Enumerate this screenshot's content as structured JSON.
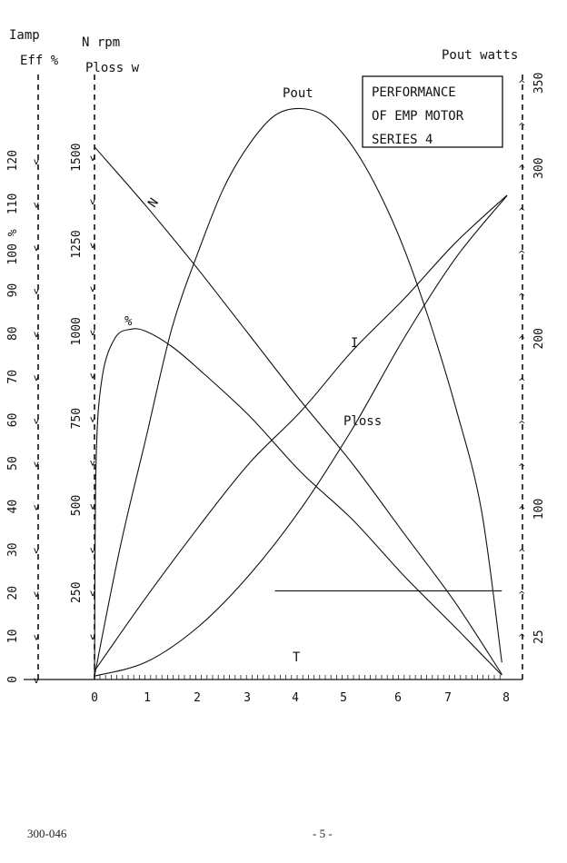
{
  "document": {
    "number": "300-046",
    "page": "- 5 -"
  },
  "chart_data": {
    "type": "line",
    "title": [
      "PERFORMANCE",
      "OF EMP MOTOR",
      "SERIES 4"
    ],
    "xlabel": "T",
    "xlim": [
      0,
      8
    ],
    "x_ticks": [
      "0",
      "1",
      "2",
      "3",
      "4",
      "5",
      "6",
      "7",
      "8"
    ],
    "axes": {
      "i_eff": {
        "labels": [
          "Iamp",
          "Eff %"
        ],
        "ticks": [
          "0",
          "10",
          "20",
          "30",
          "40",
          "50",
          "60",
          "70",
          "80",
          "90",
          "100 %",
          "110",
          "120"
        ],
        "range": [
          0,
          125
        ]
      },
      "rpm_ploss": {
        "labels": [
          "N rpm",
          "Ploss w"
        ],
        "ticks": [
          "250",
          "500",
          "750",
          "1000",
          "1250",
          "1500"
        ],
        "range": [
          0,
          1600
        ]
      },
      "pout": {
        "labels": [
          "Pout watts"
        ],
        "ticks": [
          "25",
          "100",
          "200",
          "300",
          "350"
        ],
        "range": [
          0,
          350
        ]
      }
    },
    "series": [
      {
        "name": "N",
        "axis": "rpm_ploss",
        "x": [
          0,
          1,
          2,
          3,
          4,
          5,
          6,
          7,
          7.9
        ],
        "y": [
          1530,
          1360,
          1180,
          990,
          800,
          620,
          420,
          220,
          15
        ]
      },
      {
        "name": "%",
        "axis": "i_eff",
        "x": [
          0,
          0.03,
          0.15,
          0.4,
          0.7,
          1.0,
          1.5,
          2,
          3,
          4,
          5,
          6,
          7,
          7.9
        ],
        "y": [
          0,
          50,
          70,
          79,
          81,
          80.5,
          77,
          72,
          61,
          48,
          37,
          24,
          12,
          1
        ]
      },
      {
        "name": "Pout",
        "axis": "pout",
        "x": [
          0,
          0.5,
          1,
          1.5,
          2,
          2.5,
          3,
          3.5,
          4,
          4.5,
          5,
          5.5,
          6,
          6.5,
          7,
          7.5,
          7.9
        ],
        "y": [
          2,
          78,
          142,
          206,
          250,
          288,
          314,
          331,
          335,
          330,
          313,
          287,
          253,
          210,
          160,
          100,
          10
        ]
      },
      {
        "name": "I",
        "axis": "i_eff",
        "x": [
          0,
          1,
          2,
          3,
          4,
          5,
          6,
          7,
          8
        ],
        "y": [
          2,
          19,
          35,
          50,
          62,
          76,
          88,
          101,
          112
        ]
      },
      {
        "name": "Ploss",
        "axis": "rpm_ploss",
        "x": [
          0,
          1,
          2,
          3,
          4,
          5,
          6,
          7,
          8
        ],
        "y": [
          10,
          50,
          150,
          300,
          490,
          720,
          980,
          1210,
          1390
        ]
      },
      {
        "name": "",
        "axis": "pout",
        "x": [
          3.5,
          7.9
        ],
        "y": [
          52,
          52
        ]
      }
    ],
    "series_labels": [
      "N",
      "%",
      "Pout",
      "I",
      "Ploss",
      "T"
    ]
  }
}
